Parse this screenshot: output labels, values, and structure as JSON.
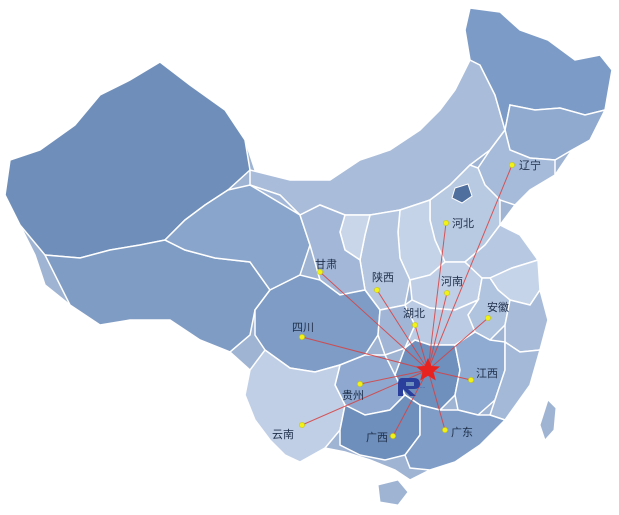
{
  "colors": {
    "country_fill": "#9fb4d3",
    "xinjiang_fill": "#6f8fba",
    "dark_fill": "#5d7fae",
    "light_fill": "#c2d1e6",
    "hub_star": "#e8231f",
    "ray": "#d84040",
    "dot": "#f2f21a",
    "logo": "#2a3f9c"
  },
  "provinces": [
    {
      "key": "liaoning",
      "name": "辽宁"
    },
    {
      "key": "hebei",
      "name": "河北"
    },
    {
      "key": "gansu",
      "name": "甘肃"
    },
    {
      "key": "shaanxi",
      "name": "陕西"
    },
    {
      "key": "henan",
      "name": "河南"
    },
    {
      "key": "anhui",
      "name": "安徽"
    },
    {
      "key": "hubei",
      "name": "湖北"
    },
    {
      "key": "sichuan",
      "name": "四川"
    },
    {
      "key": "jiangxi",
      "name": "江西"
    },
    {
      "key": "guizhou",
      "name": "贵州"
    },
    {
      "key": "yunnan",
      "name": "云南"
    },
    {
      "key": "guangxi",
      "name": "广西"
    },
    {
      "key": "guangdong",
      "name": "广东"
    }
  ],
  "hub": {
    "icon": "red-star-icon",
    "logo_icon": "company-logo-icon"
  }
}
